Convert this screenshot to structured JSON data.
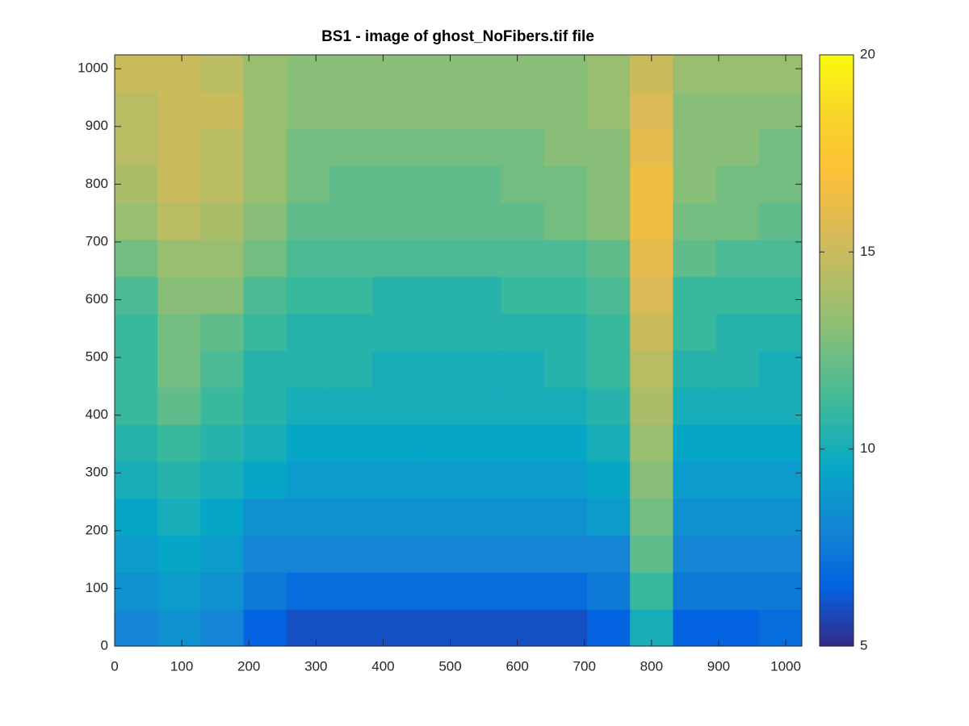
{
  "chart_data": {
    "type": "heatmap",
    "title": "BS1 - image of ghost_NoFibers.tif file",
    "colormap": "parula",
    "x": [
      32,
      96,
      160,
      224,
      288,
      352,
      416,
      480,
      544,
      608,
      672,
      736,
      800,
      864,
      928,
      992
    ],
    "y": [
      32,
      96,
      160,
      224,
      288,
      352,
      416,
      480,
      544,
      608,
      672,
      736,
      800,
      864,
      928,
      992
    ],
    "z": [
      [
        8,
        8.5,
        8,
        6.5,
        6,
        6,
        6,
        6,
        6,
        6,
        6,
        6.5,
        10,
        6.5,
        6.5,
        7
      ],
      [
        8.5,
        9,
        8.5,
        7.5,
        7,
        7,
        7,
        7,
        7,
        7,
        7,
        7.5,
        11,
        7.5,
        7.5,
        7.5
      ],
      [
        9,
        9.5,
        9,
        8,
        8,
        8,
        8,
        8,
        8,
        8,
        8,
        8,
        12,
        8,
        8,
        8
      ],
      [
        9.5,
        10,
        9.5,
        8.5,
        8.5,
        8.5,
        8.5,
        8.5,
        8.5,
        8.5,
        8.5,
        9,
        12.5,
        8.5,
        8.5,
        8.5
      ],
      [
        10,
        10.5,
        10,
        9.5,
        9,
        9,
        9,
        9,
        9,
        9,
        9,
        9.5,
        13,
        9,
        9,
        9
      ],
      [
        10.5,
        11,
        10.5,
        10,
        9.5,
        9.5,
        9.5,
        9.5,
        9.5,
        9.5,
        9.5,
        10,
        13.5,
        9.5,
        9.5,
        9.5
      ],
      [
        11,
        12,
        11,
        10.5,
        10,
        10,
        10,
        10,
        10,
        10,
        10,
        10.5,
        14,
        10,
        10,
        10
      ],
      [
        11,
        12.5,
        11.5,
        10.5,
        10.5,
        10.5,
        10,
        10,
        10,
        10,
        10.5,
        11,
        14.5,
        10.5,
        10.5,
        10
      ],
      [
        11,
        12.5,
        12,
        11,
        10.5,
        10.5,
        10.5,
        10.5,
        10.5,
        10.5,
        10.5,
        11,
        15,
        11,
        10.5,
        10.5
      ],
      [
        11.5,
        13,
        13,
        11.5,
        11,
        11,
        10.5,
        10.5,
        10.5,
        11,
        11,
        11.5,
        15.5,
        11,
        11,
        11
      ],
      [
        12.5,
        13.5,
        13.5,
        12.5,
        11.5,
        11.5,
        11.5,
        11.5,
        11.5,
        11.5,
        11.5,
        12,
        16,
        12,
        11.5,
        11.5
      ],
      [
        13.5,
        14.5,
        14,
        13,
        12,
        12,
        12,
        12,
        12,
        12,
        12.5,
        13,
        16.5,
        12.5,
        12.5,
        12
      ],
      [
        14,
        15,
        14.5,
        13.5,
        12.5,
        12,
        12,
        12,
        12,
        12.5,
        12.5,
        13,
        16.5,
        13,
        12.5,
        12.5
      ],
      [
        14.5,
        15,
        14.5,
        13.5,
        12.5,
        12.5,
        12.5,
        12.5,
        12.5,
        12.5,
        13,
        13,
        16,
        13,
        13,
        12.5
      ],
      [
        14.5,
        15,
        15,
        13.5,
        13,
        13,
        13,
        13,
        13,
        13,
        13,
        13.5,
        15.5,
        13,
        13,
        13
      ],
      [
        15,
        15,
        14.5,
        13.5,
        13,
        13,
        13,
        13,
        13,
        13,
        13,
        13.5,
        15,
        13.5,
        13.5,
        13.5
      ]
    ],
    "xlim": [
      0,
      1024
    ],
    "ylim": [
      0,
      1024
    ],
    "xticks": [
      0,
      100,
      200,
      300,
      400,
      500,
      600,
      700,
      800,
      900,
      1000
    ],
    "yticks": [
      0,
      100,
      200,
      300,
      400,
      500,
      600,
      700,
      800,
      900,
      1000
    ],
    "clim": [
      5,
      20
    ],
    "cticks": [
      5,
      10,
      15,
      20
    ]
  }
}
